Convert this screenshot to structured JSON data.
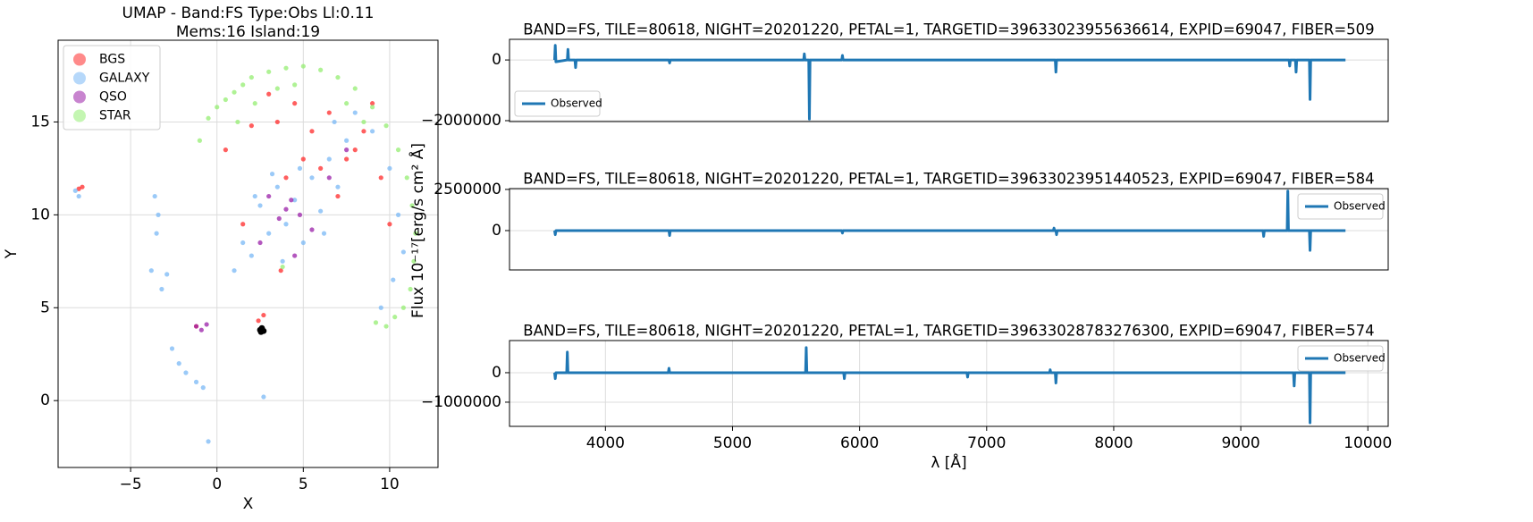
{
  "chart_data": [
    {
      "type": "scatter",
      "title": "UMAP  -  Band:FS Type:Obs Ll:0.11",
      "subtitle": "Mems:16 Island:19",
      "xlabel": "X",
      "ylabel": "Y",
      "xlim": [
        -9.2,
        12.8
      ],
      "ylim": [
        -3.6,
        19.4
      ],
      "xticks": [
        {
          "value": -5,
          "label": "−5"
        },
        0,
        5,
        10
      ],
      "yticks": [
        0,
        5,
        10,
        15
      ],
      "grid": true,
      "legend_loc": "upper left",
      "series": [
        {
          "name": "BGS",
          "color": "#ff2a2a",
          "x": [
            -8.0,
            -7.8,
            2.4,
            2.7,
            -1.2,
            3.5,
            4.5,
            5.5,
            6.5,
            7.5,
            8.5,
            9.5,
            6.0,
            7.0,
            8.0,
            5.0,
            2.0,
            3.0,
            4.0,
            10.0,
            9.0,
            0.5,
            1.5,
            3.7
          ],
          "values": [
            11.4,
            11.5,
            4.3,
            4.6,
            4.0,
            15.0,
            16.0,
            14.5,
            15.5,
            13.0,
            14.5,
            12.0,
            12.5,
            11.0,
            13.5,
            13.0,
            14.8,
            16.5,
            12.0,
            9.5,
            16.0,
            13.5,
            9.5,
            7.0
          ]
        },
        {
          "name": "GALAXY",
          "color": "#7ab8f5",
          "x": [
            -8.2,
            -8.0,
            -3.6,
            -3.4,
            -3.5,
            -3.8,
            -3.2,
            -2.9,
            -2.6,
            -2.2,
            -1.8,
            -1.2,
            -0.8,
            2.7,
            -0.5,
            1.5,
            2.5,
            3.0,
            3.5,
            4.0,
            4.5,
            5.0,
            5.5,
            6.0,
            6.5,
            7.0,
            3.8,
            4.8,
            6.2,
            2.0,
            1.0,
            8.0,
            9.0,
            10.0,
            10.5,
            10.8,
            10.2,
            9.5,
            7.5,
            6.8,
            3.2,
            2.2
          ],
          "values": [
            11.3,
            11.0,
            11.0,
            10.0,
            9.0,
            7.0,
            6.0,
            6.8,
            2.8,
            2.0,
            1.5,
            1.0,
            0.7,
            0.2,
            -2.2,
            8.5,
            10.5,
            9.0,
            11.5,
            9.5,
            10.8,
            8.5,
            12.0,
            10.2,
            13.0,
            11.5,
            7.5,
            12.5,
            9.0,
            7.8,
            7.0,
            15.5,
            14.5,
            12.5,
            10.0,
            8.0,
            6.5,
            5.0,
            14.0,
            15.0,
            12.2,
            11.0
          ]
        },
        {
          "name": "QSO",
          "color": "#9a1fa8",
          "x": [
            -1.2,
            -0.9,
            -0.6,
            4.0,
            4.3,
            3.6,
            4.8,
            3.0,
            5.5,
            2.5,
            6.5,
            4.5,
            7.5
          ],
          "values": [
            4.0,
            3.8,
            4.1,
            10.3,
            10.8,
            9.8,
            10.0,
            11.0,
            9.2,
            8.5,
            12.0,
            7.8,
            13.5
          ]
        },
        {
          "name": "STAR",
          "color": "#94ee72",
          "x": [
            -1.0,
            -0.5,
            0.0,
            0.5,
            1.0,
            1.5,
            2.0,
            3.0,
            4.0,
            5.0,
            6.0,
            7.0,
            8.0,
            9.0,
            9.8,
            10.5,
            11.0,
            11.3,
            11.5,
            11.4,
            11.2,
            10.8,
            10.3,
            9.8,
            9.2,
            1.2,
            2.2,
            3.5,
            4.5,
            7.5,
            8.5,
            3.8
          ],
          "values": [
            14.0,
            15.2,
            15.8,
            16.2,
            16.6,
            17.0,
            17.4,
            17.7,
            17.9,
            18.0,
            17.8,
            17.4,
            16.8,
            15.8,
            14.8,
            13.5,
            12.0,
            10.5,
            9.0,
            7.5,
            6.0,
            5.0,
            4.5,
            4.0,
            4.2,
            15.0,
            16.0,
            16.8,
            17.0,
            16.0,
            15.0,
            7.2
          ]
        },
        {
          "color": "#000000",
          "x": [
            2.5,
            2.6,
            2.7,
            2.55
          ],
          "values": [
            3.8,
            3.9,
            3.75,
            3.7
          ]
        }
      ]
    },
    {
      "type": "line",
      "title": "BAND=FS, TILE=80618, NIGHT=20201220, PETAL=1, TARGETID=39633023955636614, EXPID=69047, FIBER=509",
      "xlim": [
        3245,
        10160
      ],
      "ylim": [
        -2030000,
        680000
      ],
      "yticks": [
        0,
        {
          "value": -2000000,
          "label": "−2000000"
        }
      ],
      "grid": true,
      "legend_loc": "lower left",
      "x": [
        3600,
        3605,
        3610,
        3700,
        3705,
        3710,
        3760,
        3765,
        3770,
        4500,
        4505,
        4510,
        5560,
        5565,
        5570,
        5600,
        5605,
        5610,
        5860,
        5865,
        5870,
        7540,
        7545,
        7550,
        9380,
        9385,
        9390,
        9430,
        9435,
        9440,
        9540,
        9545,
        9550,
        9824
      ],
      "series": [
        {
          "name": "Observed",
          "color": "#1f77b4",
          "values": [
            0,
            480000,
            -60000,
            0,
            350000,
            0,
            0,
            -250000,
            0,
            0,
            -100000,
            0,
            0,
            200000,
            0,
            0,
            -1950000,
            0,
            0,
            150000,
            0,
            0,
            -400000,
            0,
            0,
            -200000,
            0,
            0,
            -400000,
            0,
            0,
            -1300000,
            0,
            0
          ]
        }
      ]
    },
    {
      "type": "line",
      "title": "BAND=FS, TILE=80618, NIGHT=20201220, PETAL=1, TARGETID=39633023951440523, EXPID=69047, FIBER=584",
      "ylabel": "Flux 10⁻¹⁷[erg/s cm² Å]",
      "xlim": [
        3245,
        10160
      ],
      "ylim": [
        -2390000,
        2550000
      ],
      "yticks": [
        0,
        2500000
      ],
      "grid": true,
      "legend_loc": "upper right",
      "x": [
        3600,
        3605,
        3610,
        4500,
        4505,
        4510,
        5860,
        5865,
        5870,
        7525,
        7530,
        7535,
        7545,
        7550,
        7555,
        9175,
        9180,
        9185,
        9365,
        9370,
        9375,
        9540,
        9545,
        9550,
        9824
      ],
      "series": [
        {
          "name": "Observed",
          "color": "#1f77b4",
          "values": [
            0,
            -250000,
            0,
            0,
            -300000,
            0,
            0,
            -150000,
            0,
            0,
            150000,
            0,
            0,
            -250000,
            0,
            0,
            -350000,
            0,
            0,
            2400000,
            0,
            0,
            -1200000,
            0,
            0
          ]
        }
      ]
    },
    {
      "type": "line",
      "title": "BAND=FS, TILE=80618, NIGHT=20201220, PETAL=1, TARGETID=39633028783276300, EXPID=69047, FIBER=574",
      "xlabel": "λ [Å]",
      "xlim": [
        3245,
        10160
      ],
      "ylim": [
        -1820000,
        1090000
      ],
      "xticks": [
        4000,
        5000,
        6000,
        7000,
        8000,
        9000,
        10000
      ],
      "yticks": [
        0,
        {
          "value": -1000000,
          "label": "−1000000"
        }
      ],
      "grid": true,
      "legend_loc": "upper right",
      "x": [
        3600,
        3605,
        3610,
        3695,
        3700,
        3705,
        4495,
        4500,
        4505,
        5575,
        5580,
        5585,
        5875,
        5880,
        5885,
        6845,
        6850,
        6855,
        7495,
        7500,
        7505,
        7540,
        7545,
        7550,
        9415,
        9420,
        9425,
        9540,
        9545,
        9550,
        9824
      ],
      "series": [
        {
          "name": "Observed",
          "color": "#1f77b4",
          "values": [
            0,
            -200000,
            0,
            0,
            700000,
            0,
            0,
            150000,
            0,
            0,
            850000,
            0,
            0,
            -200000,
            0,
            0,
            -150000,
            0,
            0,
            100000,
            0,
            0,
            -350000,
            0,
            0,
            -450000,
            0,
            0,
            -1700000,
            0,
            0
          ]
        }
      ]
    }
  ]
}
